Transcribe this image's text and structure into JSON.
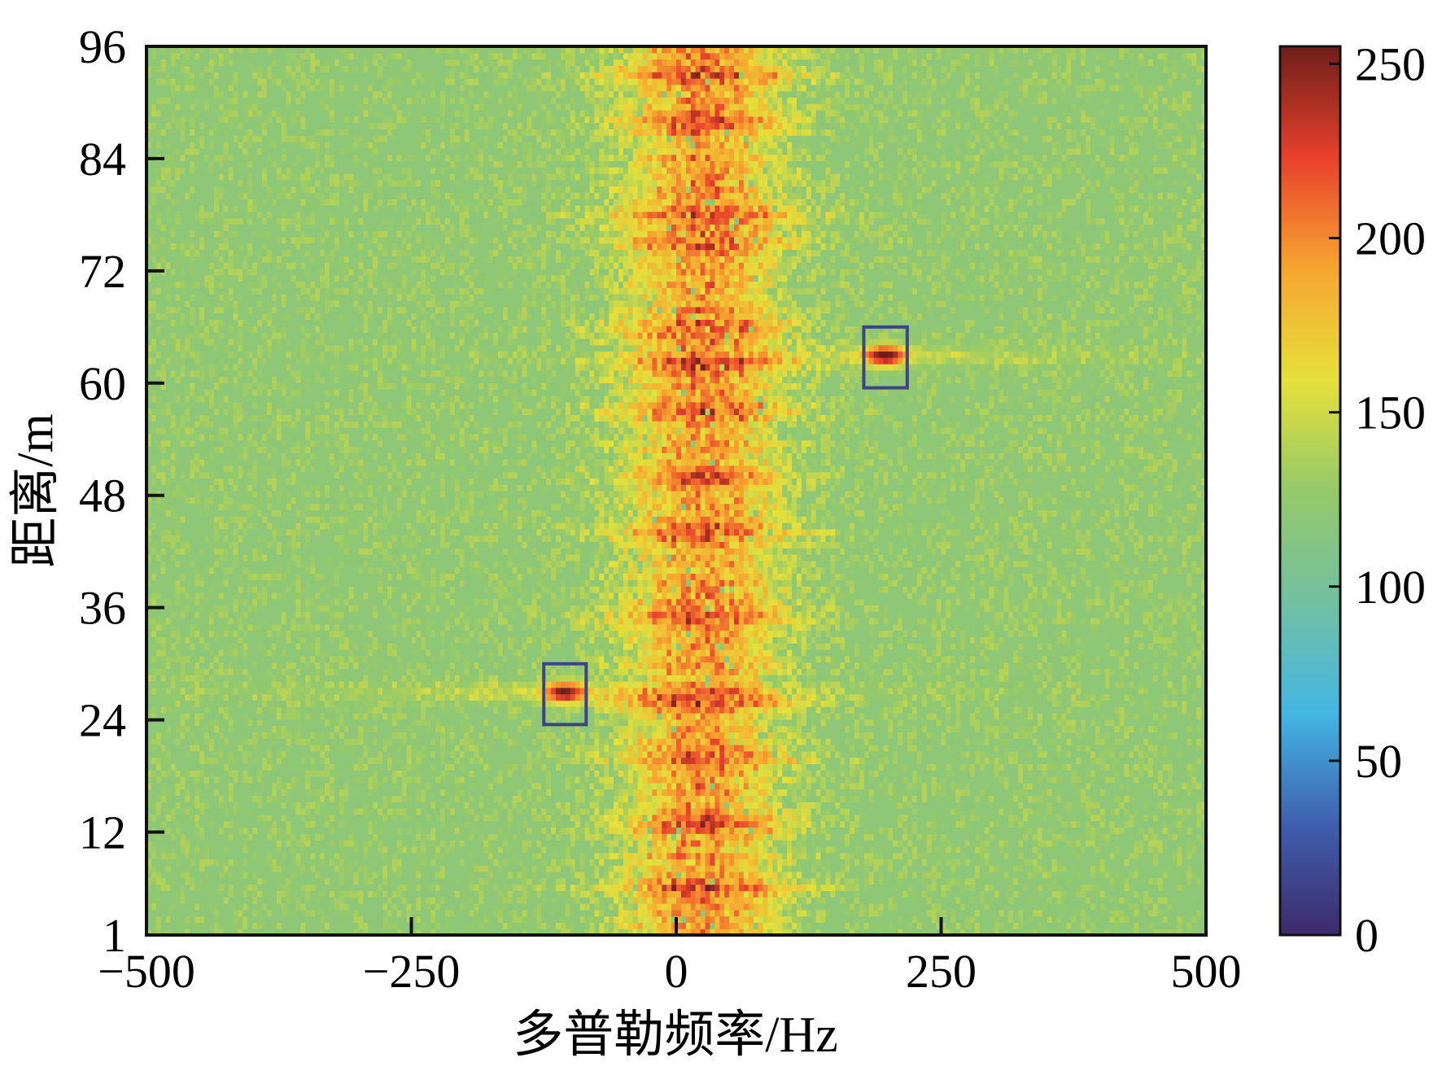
{
  "chart_data": {
    "type": "heatmap",
    "xlabel": "多普勒频率/Hz",
    "ylabel": "距离/m",
    "xlim": [
      -500,
      500
    ],
    "ylim": [
      1,
      96
    ],
    "x_ticks": [
      -500,
      -250,
      0,
      250,
      500
    ],
    "x_tick_labels": [
      "−500",
      "−250",
      "0",
      "250",
      "500"
    ],
    "y_ticks": [
      1,
      12,
      24,
      36,
      48,
      60,
      72,
      84,
      96
    ],
    "y_tick_labels": [
      "1",
      "12",
      "24",
      "36",
      "48",
      "60",
      "72",
      "84",
      "96"
    ],
    "colorbar": {
      "range": [
        0,
        255
      ],
      "ticks": [
        0,
        50,
        100,
        150,
        200,
        250
      ],
      "tick_labels": [
        "0",
        "50",
        "100",
        "150",
        "200",
        "250"
      ],
      "colors": [
        "#3e2a6b",
        "#3f5fae",
        "#44b6e3",
        "#72c0a2",
        "#95c96a",
        "#e6e03a",
        "#f7a530",
        "#e8402c",
        "#6e1f1a"
      ]
    },
    "background_level": 120,
    "clutter_band": {
      "doppler_center_hz": 25,
      "doppler_halfwidth_hz": 65,
      "peak_level": 225,
      "bright_rows_m": [
        6,
        13,
        20,
        26,
        35,
        44,
        50,
        57,
        62,
        66,
        75,
        78,
        88,
        93
      ]
    },
    "targets": [
      {
        "doppler_hz": -105,
        "range_m": 27,
        "level": 230,
        "streak_level": 175,
        "box_doppler_hz": [
          -125,
          -85
        ],
        "box_range_m": [
          23.5,
          30
        ]
      },
      {
        "doppler_hz": 197,
        "range_m": 63,
        "level": 240,
        "streak_level": 165,
        "box_doppler_hz": [
          177,
          218
        ],
        "box_range_m": [
          59.5,
          66
        ]
      }
    ],
    "box_color": "#3a4486"
  }
}
